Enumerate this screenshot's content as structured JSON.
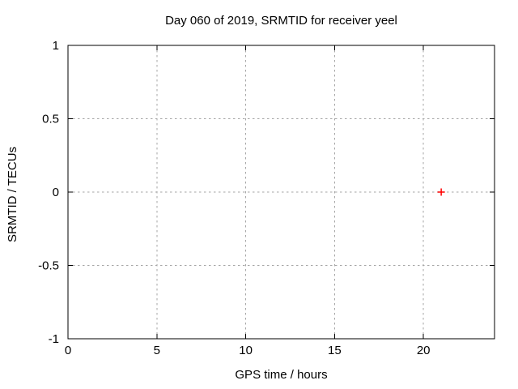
{
  "chart_data": {
    "type": "scatter",
    "title": "Day 060 of 2019, SRMTID for receiver yeel",
    "xlabel": "GPS time / hours",
    "ylabel": "SRMTID / TECUs",
    "xlim": [
      0,
      24
    ],
    "ylim": [
      -1,
      1
    ],
    "xticks": [
      {
        "value": 0,
        "label": "0"
      },
      {
        "value": 5,
        "label": "5"
      },
      {
        "value": 10,
        "label": "10"
      },
      {
        "value": 15,
        "label": "15"
      },
      {
        "value": 20,
        "label": "20"
      }
    ],
    "yticks": [
      {
        "value": -1,
        "label": "-1"
      },
      {
        "value": -0.5,
        "label": "-0.5"
      },
      {
        "value": 0,
        "label": "0"
      },
      {
        "value": 0.5,
        "label": "0.5"
      },
      {
        "value": 1,
        "label": "1"
      }
    ],
    "grid": true,
    "grid_style": "dashed",
    "legend": "none",
    "series": [
      {
        "marker": "plus",
        "color": "#ff0000",
        "points": [
          {
            "x": 21,
            "y": 0
          }
        ]
      }
    ],
    "colors": {
      "axis": "#000000",
      "grid": "#a6a6a6",
      "background": "#ffffff",
      "text": "#000000"
    }
  }
}
